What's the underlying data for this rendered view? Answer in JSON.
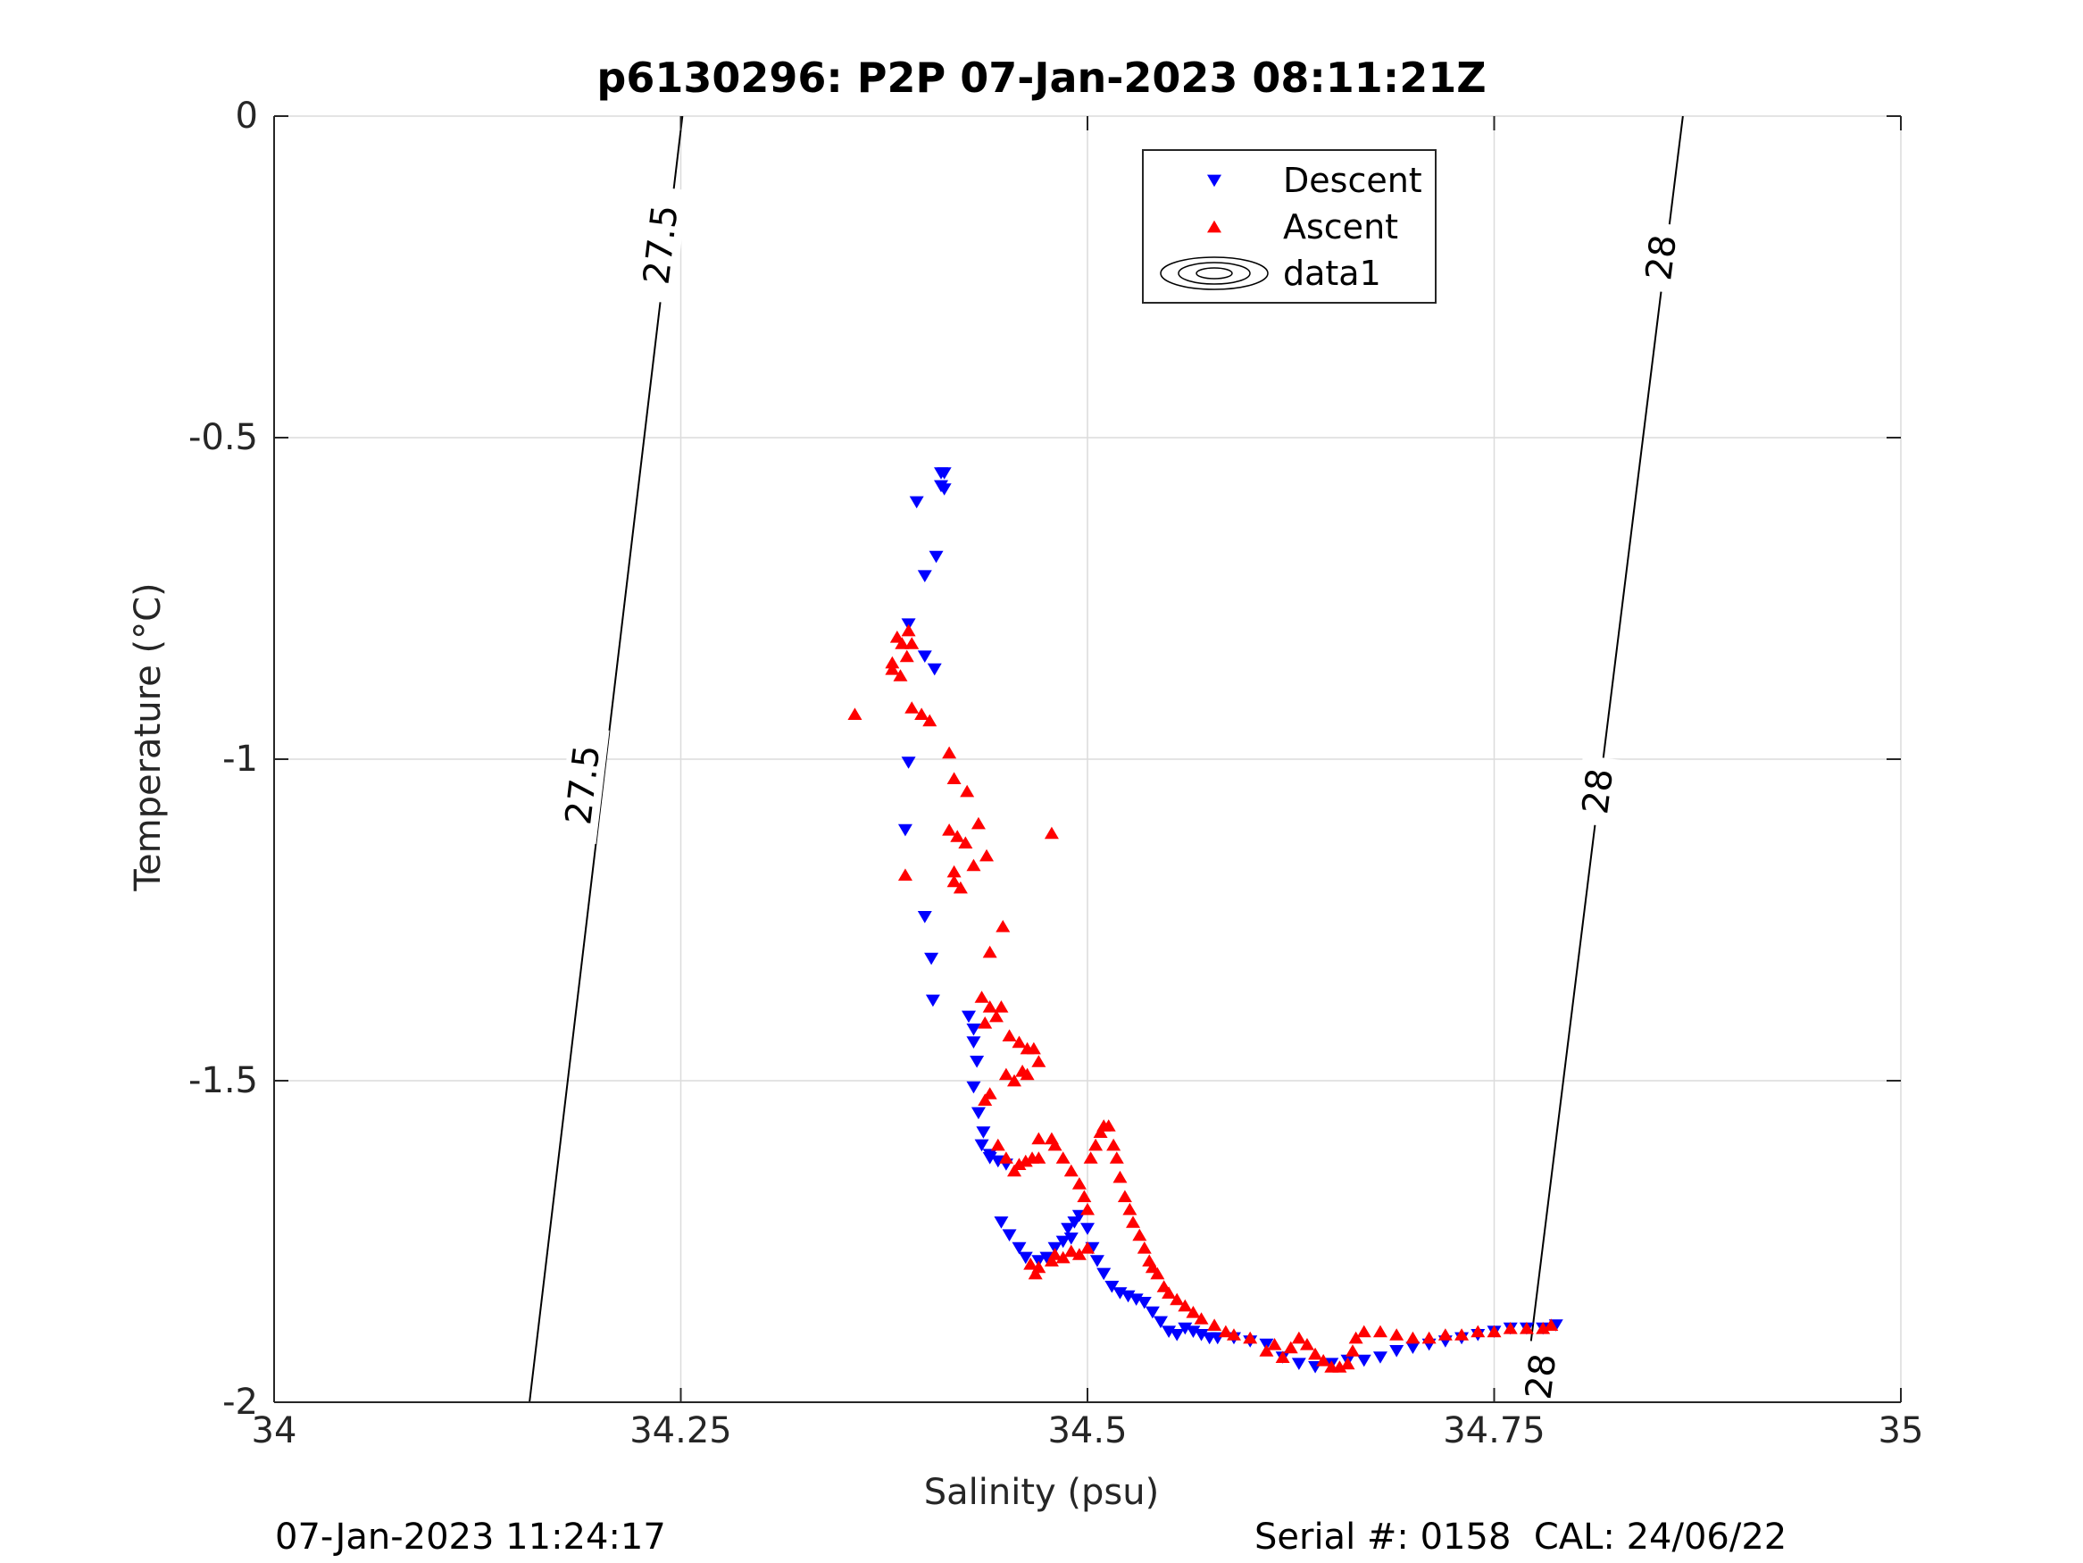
{
  "title": "p6130296: P2P 07-Jan-2023 08:11:21Z",
  "footer": {
    "timestamp": "07-Jan-2023 11:24:17",
    "serial_cal": "Serial #: 0158  CAL: 24/06/22"
  },
  "colors": {
    "descent": "#0000ff",
    "ascent": "#ff0000",
    "contour": "#000000",
    "grid": "#dcdcdc",
    "axis": "#262626"
  },
  "chart_data": {
    "type": "scatter",
    "title": "p6130296: P2P 07-Jan-2023 08:11:21Z",
    "xlabel": "Salinity (psu)",
    "ylabel": "Temperature (°C)",
    "xlim": [
      34,
      35
    ],
    "ylim": [
      -2,
      0
    ],
    "xticks": [
      34,
      34.25,
      34.5,
      34.75,
      35
    ],
    "xtick_labels": [
      "34",
      "34.25",
      "34.5",
      "34.75",
      "35"
    ],
    "yticks": [
      -2,
      -1.5,
      -1,
      -0.5,
      0
    ],
    "ytick_labels": [
      "-2",
      "-1.5",
      "-1",
      "-0.5",
      "0"
    ],
    "grid": true,
    "legend_position": "top-right",
    "legend": [
      "Descent",
      "Ascent",
      "data1"
    ],
    "series": [
      {
        "name": "Descent",
        "marker": "triangle-down",
        "color": "#0000ff",
        "points": [
          [
            34.41,
            -0.555
          ],
          [
            34.412,
            -0.555
          ],
          [
            34.41,
            -0.575
          ],
          [
            34.412,
            -0.58
          ],
          [
            34.395,
            -0.6
          ],
          [
            34.407,
            -0.685
          ],
          [
            34.4,
            -0.715
          ],
          [
            34.39,
            -0.79
          ],
          [
            34.4,
            -0.84
          ],
          [
            34.406,
            -0.86
          ],
          [
            34.39,
            -1.005
          ],
          [
            34.388,
            -1.11
          ],
          [
            34.4,
            -1.245
          ],
          [
            34.404,
            -1.31
          ],
          [
            34.405,
            -1.375
          ],
          [
            34.427,
            -1.4
          ],
          [
            34.43,
            -1.42
          ],
          [
            34.43,
            -1.44
          ],
          [
            34.432,
            -1.47
          ],
          [
            34.43,
            -1.51
          ],
          [
            34.433,
            -1.55
          ],
          [
            34.436,
            -1.58
          ],
          [
            34.435,
            -1.6
          ],
          [
            34.44,
            -1.615
          ],
          [
            34.44,
            -1.62
          ],
          [
            34.445,
            -1.625
          ],
          [
            34.45,
            -1.63
          ],
          [
            34.447,
            -1.72
          ],
          [
            34.452,
            -1.74
          ],
          [
            34.458,
            -1.76
          ],
          [
            34.462,
            -1.775
          ],
          [
            34.47,
            -1.78
          ],
          [
            34.475,
            -1.775
          ],
          [
            34.48,
            -1.76
          ],
          [
            34.485,
            -1.75
          ],
          [
            34.488,
            -1.73
          ],
          [
            34.492,
            -1.72
          ],
          [
            34.495,
            -1.71
          ],
          [
            34.49,
            -1.745
          ],
          [
            34.5,
            -1.73
          ],
          [
            34.503,
            -1.76
          ],
          [
            34.506,
            -1.78
          ],
          [
            34.51,
            -1.8
          ],
          [
            34.515,
            -1.82
          ],
          [
            34.52,
            -1.83
          ],
          [
            34.525,
            -1.835
          ],
          [
            34.53,
            -1.84
          ],
          [
            34.535,
            -1.845
          ],
          [
            34.54,
            -1.86
          ],
          [
            34.545,
            -1.875
          ],
          [
            34.55,
            -1.89
          ],
          [
            34.555,
            -1.895
          ],
          [
            34.56,
            -1.885
          ],
          [
            34.565,
            -1.89
          ],
          [
            34.57,
            -1.895
          ],
          [
            34.575,
            -1.9
          ],
          [
            34.58,
            -1.9
          ],
          [
            34.59,
            -1.9
          ],
          [
            34.6,
            -1.905
          ],
          [
            34.61,
            -1.91
          ],
          [
            34.62,
            -1.93
          ],
          [
            34.63,
            -1.94
          ],
          [
            34.64,
            -1.945
          ],
          [
            34.65,
            -1.94
          ],
          [
            34.66,
            -1.935
          ],
          [
            34.67,
            -1.935
          ],
          [
            34.68,
            -1.93
          ],
          [
            34.69,
            -1.92
          ],
          [
            34.7,
            -1.915
          ],
          [
            34.71,
            -1.91
          ],
          [
            34.72,
            -1.905
          ],
          [
            34.73,
            -1.9
          ],
          [
            34.74,
            -1.895
          ],
          [
            34.75,
            -1.89
          ],
          [
            34.76,
            -1.885
          ],
          [
            34.77,
            -1.885
          ],
          [
            34.78,
            -1.885
          ],
          [
            34.788,
            -1.88
          ]
        ]
      },
      {
        "name": "Ascent",
        "marker": "triangle-up",
        "color": "#ff0000",
        "points": [
          [
            34.357,
            -0.93
          ],
          [
            34.38,
            -0.85
          ],
          [
            34.383,
            -0.81
          ],
          [
            34.386,
            -0.82
          ],
          [
            34.389,
            -0.84
          ],
          [
            34.39,
            -0.8
          ],
          [
            34.392,
            -0.82
          ],
          [
            34.38,
            -0.86
          ],
          [
            34.385,
            -0.87
          ],
          [
            34.392,
            -0.92
          ],
          [
            34.398,
            -0.93
          ],
          [
            34.403,
            -0.94
          ],
          [
            34.415,
            -0.99
          ],
          [
            34.418,
            -1.03
          ],
          [
            34.426,
            -1.05
          ],
          [
            34.415,
            -1.11
          ],
          [
            34.42,
            -1.12
          ],
          [
            34.425,
            -1.13
          ],
          [
            34.433,
            -1.1
          ],
          [
            34.438,
            -1.15
          ],
          [
            34.43,
            -1.165
          ],
          [
            34.418,
            -1.175
          ],
          [
            34.418,
            -1.19
          ],
          [
            34.422,
            -1.2
          ],
          [
            34.388,
            -1.18
          ],
          [
            34.478,
            -1.115
          ],
          [
            34.448,
            -1.26
          ],
          [
            34.44,
            -1.3
          ],
          [
            34.435,
            -1.37
          ],
          [
            34.44,
            -1.385
          ],
          [
            34.437,
            -1.41
          ],
          [
            34.444,
            -1.4
          ],
          [
            34.447,
            -1.385
          ],
          [
            34.452,
            -1.43
          ],
          [
            34.458,
            -1.44
          ],
          [
            34.463,
            -1.45
          ],
          [
            34.467,
            -1.45
          ],
          [
            34.47,
            -1.47
          ],
          [
            34.46,
            -1.485
          ],
          [
            34.463,
            -1.49
          ],
          [
            34.45,
            -1.49
          ],
          [
            34.455,
            -1.5
          ],
          [
            34.44,
            -1.52
          ],
          [
            34.437,
            -1.53
          ],
          [
            34.445,
            -1.6
          ],
          [
            34.45,
            -1.62
          ],
          [
            34.455,
            -1.64
          ],
          [
            34.458,
            -1.63
          ],
          [
            34.462,
            -1.625
          ],
          [
            34.466,
            -1.62
          ],
          [
            34.47,
            -1.62
          ],
          [
            34.47,
            -1.59
          ],
          [
            34.478,
            -1.59
          ],
          [
            34.48,
            -1.6
          ],
          [
            34.485,
            -1.62
          ],
          [
            34.49,
            -1.64
          ],
          [
            34.495,
            -1.66
          ],
          [
            34.498,
            -1.68
          ],
          [
            34.5,
            -1.7
          ],
          [
            34.502,
            -1.62
          ],
          [
            34.505,
            -1.6
          ],
          [
            34.508,
            -1.58
          ],
          [
            34.51,
            -1.57
          ],
          [
            34.513,
            -1.57
          ],
          [
            34.516,
            -1.6
          ],
          [
            34.518,
            -1.62
          ],
          [
            34.52,
            -1.65
          ],
          [
            34.523,
            -1.68
          ],
          [
            34.526,
            -1.7
          ],
          [
            34.528,
            -1.72
          ],
          [
            34.532,
            -1.74
          ],
          [
            34.535,
            -1.76
          ],
          [
            34.538,
            -1.78
          ],
          [
            34.54,
            -1.79
          ],
          [
            34.543,
            -1.8
          ],
          [
            34.547,
            -1.82
          ],
          [
            34.55,
            -1.83
          ],
          [
            34.555,
            -1.84
          ],
          [
            34.56,
            -1.85
          ],
          [
            34.565,
            -1.86
          ],
          [
            34.57,
            -1.87
          ],
          [
            34.578,
            -1.88
          ],
          [
            34.585,
            -1.89
          ],
          [
            34.59,
            -1.895
          ],
          [
            34.6,
            -1.9
          ],
          [
            34.47,
            -1.79
          ],
          [
            34.468,
            -1.8
          ],
          [
            34.465,
            -1.785
          ],
          [
            34.478,
            -1.78
          ],
          [
            34.48,
            -1.77
          ],
          [
            34.485,
            -1.775
          ],
          [
            34.49,
            -1.765
          ],
          [
            34.495,
            -1.77
          ],
          [
            34.5,
            -1.76
          ],
          [
            34.61,
            -1.92
          ],
          [
            34.615,
            -1.91
          ],
          [
            34.62,
            -1.93
          ],
          [
            34.625,
            -1.915
          ],
          [
            34.63,
            -1.9
          ],
          [
            34.635,
            -1.91
          ],
          [
            34.64,
            -1.925
          ],
          [
            34.645,
            -1.935
          ],
          [
            34.65,
            -1.945
          ],
          [
            34.655,
            -1.945
          ],
          [
            34.66,
            -1.94
          ],
          [
            34.663,
            -1.92
          ],
          [
            34.665,
            -1.9
          ],
          [
            34.67,
            -1.89
          ],
          [
            34.68,
            -1.89
          ],
          [
            34.69,
            -1.895
          ],
          [
            34.7,
            -1.9
          ],
          [
            34.71,
            -1.9
          ],
          [
            34.72,
            -1.895
          ],
          [
            34.73,
            -1.895
          ],
          [
            34.74,
            -1.89
          ],
          [
            34.75,
            -1.89
          ],
          [
            34.76,
            -1.885
          ],
          [
            34.77,
            -1.885
          ],
          [
            34.78,
            -1.885
          ],
          [
            34.785,
            -1.88
          ]
        ]
      }
    ],
    "contours": [
      {
        "value": "27.5",
        "points": [
          [
            34.157,
            -2
          ],
          [
            34.251,
            0
          ]
        ],
        "labels": [
          {
            "text": "27.5",
            "x": 34.19,
            "y": -1.04
          },
          {
            "text": "27.5",
            "x": 34.238,
            "y": -0.2
          }
        ]
      },
      {
        "value": "28",
        "points": [
          [
            34.768,
            -2
          ],
          [
            34.866,
            0
          ]
        ],
        "labels": [
          {
            "text": "28",
            "x": 34.779,
            "y": -1.96
          },
          {
            "text": "28",
            "x": 34.814,
            "y": -1.05
          },
          {
            "text": "28",
            "x": 34.853,
            "y": -0.22
          }
        ]
      }
    ]
  }
}
